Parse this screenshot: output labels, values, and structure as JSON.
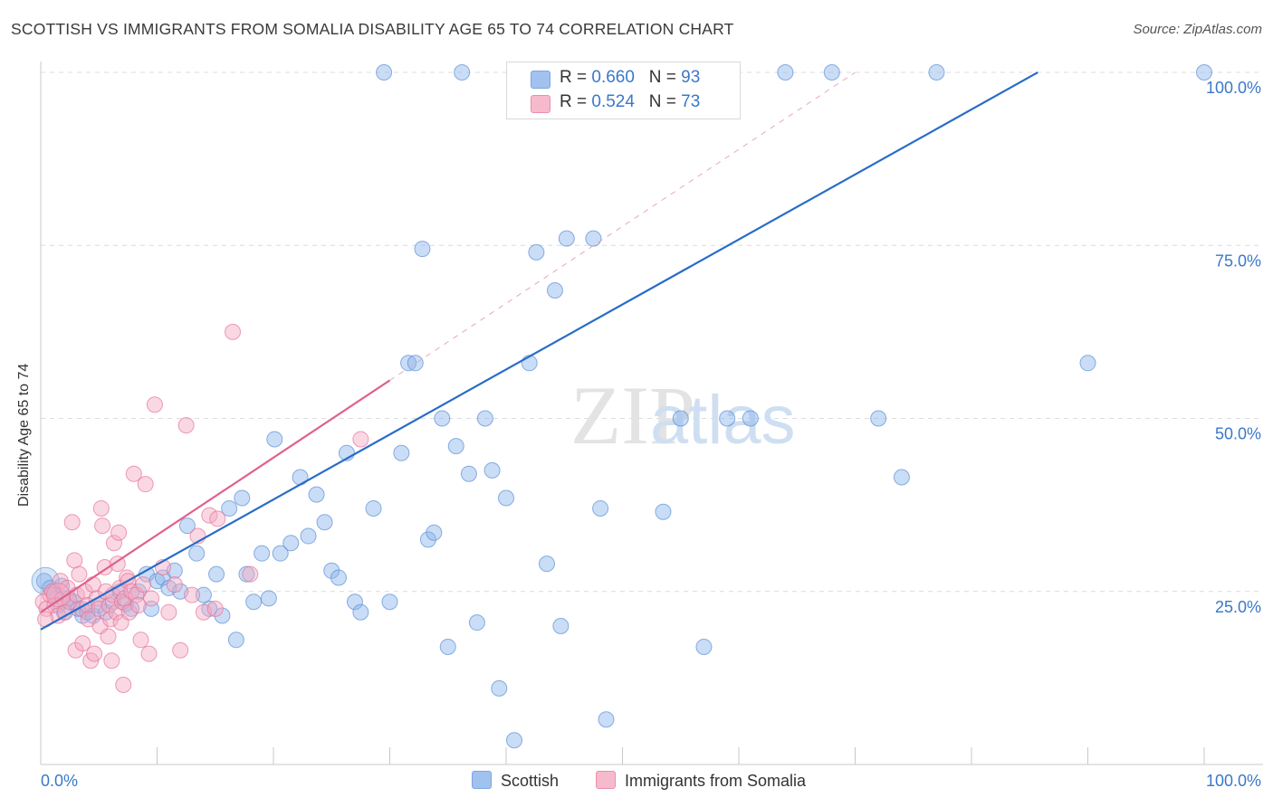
{
  "title": "SCOTTISH VS IMMIGRANTS FROM SOMALIA DISABILITY AGE 65 TO 74 CORRELATION CHART",
  "source": "Source: ZipAtlas.com",
  "watermark": {
    "zip": "ZIP",
    "atlas": "atlas"
  },
  "legend": {
    "r_label": "R = ",
    "n_label": "N = ",
    "series": [
      {
        "name": "Scottish",
        "r": "0.660",
        "n": "93",
        "color": "#8ab4ec",
        "border": "#5b8fd6"
      },
      {
        "name": "Immigrants from Somalia",
        "r": "0.524",
        "n": "73",
        "color": "#f5a9c0",
        "border": "#e57399"
      }
    ]
  },
  "chart_data": {
    "type": "scatter",
    "title": "SCOTTISH VS IMMIGRANTS FROM SOMALIA DISABILITY AGE 65 TO 74 CORRELATION CHART",
    "xlabel": "",
    "ylabel": "Disability Age 65 to 74",
    "xlim": [
      0,
      100
    ],
    "ylim": [
      0,
      100
    ],
    "x_tick_labels": [
      "0.0%",
      "100.0%"
    ],
    "y_tick_labels": [
      "25.0%",
      "50.0%",
      "75.0%",
      "100.0%"
    ],
    "y_ticks": [
      25,
      50,
      75,
      100
    ],
    "grid": true,
    "series": [
      {
        "name": "Scottish",
        "color": "#5b8fd6",
        "fill": "#8ab4ec",
        "trendline": {
          "x": [
            0,
            85.7
          ],
          "y": [
            19.5,
            100
          ],
          "color": "#2a6cc8",
          "style": "solid"
        },
        "points": [
          [
            0.3,
            26.5
          ],
          [
            0.8,
            25.5
          ],
          [
            1.2,
            24.5
          ],
          [
            1.5,
            23.0
          ],
          [
            1.8,
            25.8
          ],
          [
            2.0,
            22.0
          ],
          [
            2.4,
            24.0
          ],
          [
            2.8,
            23.5
          ],
          [
            3.2,
            22.5
          ],
          [
            3.6,
            21.5
          ],
          [
            4.0,
            22.0
          ],
          [
            4.5,
            21.5
          ],
          [
            5.0,
            23.0
          ],
          [
            5.6,
            22.0
          ],
          [
            6.2,
            23.5
          ],
          [
            6.8,
            25.0
          ],
          [
            7.3,
            23.2
          ],
          [
            7.8,
            22.5
          ],
          [
            8.4,
            25.0
          ],
          [
            9.1,
            27.5
          ],
          [
            9.5,
            22.5
          ],
          [
            10.0,
            26.5
          ],
          [
            10.5,
            27.0
          ],
          [
            11.0,
            25.5
          ],
          [
            11.5,
            28.0
          ],
          [
            12.0,
            25.0
          ],
          [
            12.6,
            34.5
          ],
          [
            13.4,
            30.5
          ],
          [
            14.0,
            24.5
          ],
          [
            14.5,
            22.5
          ],
          [
            15.1,
            27.5
          ],
          [
            15.6,
            21.5
          ],
          [
            16.2,
            37.0
          ],
          [
            16.8,
            18.0
          ],
          [
            17.3,
            38.5
          ],
          [
            17.7,
            27.5
          ],
          [
            18.3,
            23.5
          ],
          [
            19.0,
            30.5
          ],
          [
            19.6,
            24.0
          ],
          [
            20.1,
            47.0
          ],
          [
            20.6,
            30.5
          ],
          [
            21.5,
            32.0
          ],
          [
            22.3,
            41.5
          ],
          [
            23.0,
            33.0
          ],
          [
            23.7,
            39.0
          ],
          [
            24.4,
            35.0
          ],
          [
            25.0,
            28.0
          ],
          [
            25.6,
            27.0
          ],
          [
            26.3,
            45.0
          ],
          [
            27.0,
            23.5
          ],
          [
            27.5,
            22.0
          ],
          [
            28.6,
            37.0
          ],
          [
            29.5,
            100.0
          ],
          [
            30.0,
            23.5
          ],
          [
            31.0,
            45.0
          ],
          [
            31.6,
            58.0
          ],
          [
            32.2,
            58.0
          ],
          [
            32.8,
            74.5
          ],
          [
            33.3,
            32.5
          ],
          [
            33.8,
            33.5
          ],
          [
            34.5,
            50.0
          ],
          [
            35.0,
            17.0
          ],
          [
            35.7,
            46.0
          ],
          [
            36.2,
            100.0
          ],
          [
            36.8,
            42.0
          ],
          [
            37.5,
            20.5
          ],
          [
            38.2,
            50.0
          ],
          [
            38.8,
            42.5
          ],
          [
            39.4,
            11.0
          ],
          [
            40.0,
            38.5
          ],
          [
            40.7,
            3.5
          ],
          [
            42.0,
            58.0
          ],
          [
            42.6,
            74.0
          ],
          [
            43.5,
            29.0
          ],
          [
            44.2,
            68.5
          ],
          [
            44.7,
            20.0
          ],
          [
            45.2,
            76.0
          ],
          [
            45.8,
            100.0
          ],
          [
            47.5,
            76.0
          ],
          [
            48.1,
            37.0
          ],
          [
            48.6,
            6.5
          ],
          [
            53.5,
            36.5
          ],
          [
            55.0,
            50.0
          ],
          [
            57.0,
            17.0
          ],
          [
            59.0,
            50.0
          ],
          [
            61.0,
            50.0
          ],
          [
            64.0,
            100.0
          ],
          [
            68.0,
            100.0
          ],
          [
            72.0,
            50.0
          ],
          [
            74.0,
            41.5
          ],
          [
            77.0,
            100.0
          ],
          [
            90.0,
            58.0
          ],
          [
            100.0,
            100.0
          ]
        ]
      },
      {
        "name": "Immigrants from Somalia",
        "color": "#e57399",
        "fill": "#f5a9c0",
        "trendline": {
          "x": [
            0,
            30.0
          ],
          "y": [
            22.0,
            55.5
          ],
          "color": "#e0608d",
          "style": "solid",
          "extension": {
            "x": [
              30.0,
              70.0
            ],
            "y": [
              55.5,
              100
            ],
            "style": "dashed"
          }
        },
        "points": [
          [
            0.2,
            23.5
          ],
          [
            0.5,
            22.5
          ],
          [
            0.8,
            24.5
          ],
          [
            1.0,
            25.0
          ],
          [
            1.2,
            23.0
          ],
          [
            1.5,
            21.5
          ],
          [
            1.7,
            26.5
          ],
          [
            1.9,
            24.0
          ],
          [
            2.1,
            22.0
          ],
          [
            2.3,
            25.5
          ],
          [
            2.5,
            23.5
          ],
          [
            2.7,
            35.0
          ],
          [
            2.9,
            29.5
          ],
          [
            3.0,
            16.5
          ],
          [
            3.1,
            24.5
          ],
          [
            3.3,
            27.5
          ],
          [
            3.5,
            22.5
          ],
          [
            3.6,
            17.5
          ],
          [
            3.8,
            25.0
          ],
          [
            4.0,
            23.0
          ],
          [
            4.1,
            21.0
          ],
          [
            4.3,
            15.0
          ],
          [
            4.5,
            26.0
          ],
          [
            4.6,
            16.0
          ],
          [
            4.8,
            24.0
          ],
          [
            5.0,
            22.5
          ],
          [
            5.1,
            20.0
          ],
          [
            5.2,
            37.0
          ],
          [
            5.3,
            34.5
          ],
          [
            5.5,
            28.5
          ],
          [
            5.6,
            25.0
          ],
          [
            5.8,
            18.5
          ],
          [
            5.9,
            23.0
          ],
          [
            6.0,
            21.0
          ],
          [
            6.1,
            15.0
          ],
          [
            6.2,
            24.5
          ],
          [
            6.3,
            32.0
          ],
          [
            6.5,
            22.0
          ],
          [
            6.6,
            29.0
          ],
          [
            6.7,
            33.5
          ],
          [
            6.8,
            25.5
          ],
          [
            6.9,
            20.5
          ],
          [
            7.0,
            23.5
          ],
          [
            7.1,
            11.5
          ],
          [
            7.2,
            24.0
          ],
          [
            7.4,
            27.0
          ],
          [
            7.5,
            26.5
          ],
          [
            7.6,
            22.0
          ],
          [
            7.8,
            25.0
          ],
          [
            8.0,
            42.0
          ],
          [
            8.2,
            24.5
          ],
          [
            8.4,
            23.0
          ],
          [
            8.6,
            18.0
          ],
          [
            8.8,
            26.0
          ],
          [
            9.0,
            40.5
          ],
          [
            9.3,
            16.0
          ],
          [
            9.5,
            24.0
          ],
          [
            9.8,
            52.0
          ],
          [
            10.5,
            28.5
          ],
          [
            11.0,
            22.0
          ],
          [
            11.5,
            26.0
          ],
          [
            12.0,
            16.5
          ],
          [
            12.5,
            49.0
          ],
          [
            13.0,
            24.5
          ],
          [
            13.5,
            33.0
          ],
          [
            14.0,
            22.0
          ],
          [
            14.5,
            36.0
          ],
          [
            15.0,
            22.5
          ],
          [
            15.2,
            35.5
          ],
          [
            16.5,
            62.5
          ],
          [
            18.0,
            27.5
          ],
          [
            27.5,
            47.0
          ],
          [
            0.4,
            21.0
          ]
        ]
      }
    ]
  }
}
